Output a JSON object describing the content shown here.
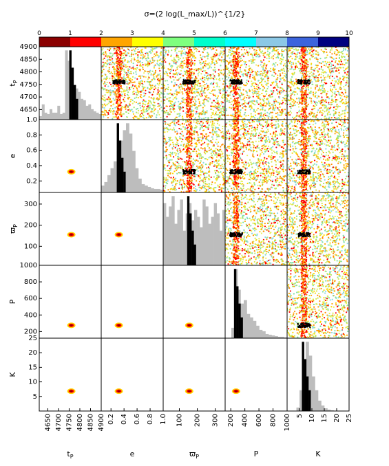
{
  "chart_data": {
    "type": "corner-plot",
    "title": "σ=(2 log(L_max/L))^{1/2}",
    "colorbar": {
      "ticks": [
        "0",
        "1",
        "2",
        "3",
        "4",
        "5",
        "6",
        "7",
        "8",
        "9",
        "10"
      ],
      "colors": [
        "#8b0000",
        "#ff0000",
        "#ffa500",
        "#ffff00",
        "#7fff7f",
        "#00ffcc",
        "#00ffff",
        "#8cc8e6",
        "#3c64dc",
        "#000080"
      ]
    },
    "parameters": [
      {
        "key": "tp",
        "label": "t",
        "sub": "P",
        "range": [
          4610,
          4900
        ],
        "ticks": [
          "4650",
          "4700",
          "4750",
          "4800",
          "4850",
          "4900"
        ],
        "xticks": [
          "4650",
          "4700",
          "4750",
          "4800",
          "4850",
          "4900"
        ],
        "mode": 4760,
        "hist": [
          0.05,
          0.22,
          0.1,
          0.08,
          0.15,
          0.1,
          0.1,
          0.2,
          0.08,
          0.1,
          1.0,
          0.85,
          0.6,
          0.5,
          0.45,
          0.4,
          0.3,
          0.28,
          0.2,
          0.22,
          0.15,
          0.12,
          0.1,
          0.08
        ]
      },
      {
        "key": "e",
        "label": "e",
        "range": [
          0.05,
          1.0
        ],
        "ticks": [
          "0.2",
          "0.4",
          "0.6",
          "0.8",
          "1.0"
        ],
        "xticks": [
          "0.2",
          "0.4",
          "0.6",
          "0.8",
          "1.0"
        ],
        "mode": 0.32,
        "hist": [
          0.1,
          0.15,
          0.25,
          0.35,
          0.45,
          0.6,
          0.75,
          0.9,
          1.0,
          0.85,
          0.6,
          0.35,
          0.2,
          0.12,
          0.1,
          0.08,
          0.06,
          0.05,
          0.05,
          0.04
        ]
      },
      {
        "key": "wp",
        "label": "ϖ",
        "sub": "P",
        "range": [
          10,
          355
        ],
        "ticks": [
          "100",
          "200",
          "300"
        ],
        "xticks": [
          "0",
          "100",
          "200",
          "300"
        ],
        "mode": 155,
        "hist": [
          0.9,
          0.7,
          0.85,
          1.0,
          0.6,
          0.8,
          0.95,
          0.5,
          0.75,
          0.9,
          0.65,
          0.8,
          0.7,
          0.55,
          0.95,
          0.85,
          0.6,
          0.7,
          0.9,
          0.75,
          0.5,
          0.8
        ]
      },
      {
        "key": "P",
        "label": "P",
        "range": [
          120,
          1000
        ],
        "ticks": [
          "200",
          "400",
          "600",
          "800",
          "1000"
        ],
        "xticks": [
          "200",
          "400",
          "600",
          "800",
          "1000"
        ],
        "mode": 275,
        "hist": [
          0.0,
          0.0,
          0.15,
          1.0,
          0.7,
          0.5,
          0.55,
          0.35,
          0.3,
          0.25,
          0.18,
          0.12,
          0.1,
          0.06,
          0.05,
          0.04,
          0.03,
          0.02,
          0.02,
          0.01
        ]
      },
      {
        "key": "K",
        "label": "K",
        "range": [
          0,
          25
        ],
        "ticks": [
          "5",
          "10",
          "15",
          "20",
          "25"
        ],
        "xticks": [
          "5",
          "10",
          "15",
          "20",
          "25"
        ],
        "mode": 6.8,
        "hist": [
          0.0,
          0.0,
          0.0,
          0.05,
          0.3,
          0.7,
          1.0,
          0.8,
          0.5,
          0.3,
          0.15,
          0.08,
          0.04,
          0.02,
          0.01,
          0.0,
          0.0,
          0.0,
          0.0,
          0.0
        ]
      }
    ]
  }
}
